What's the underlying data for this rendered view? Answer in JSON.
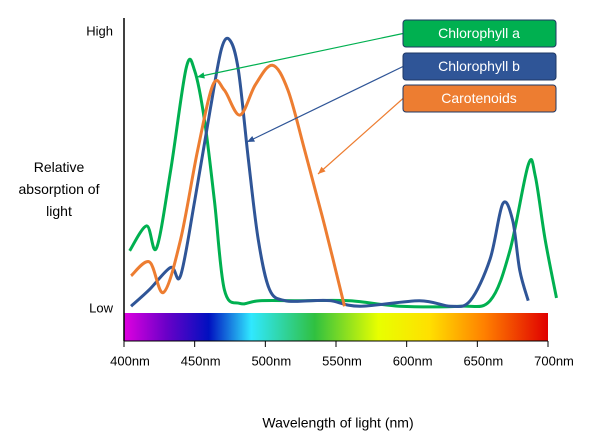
{
  "chart_data": {
    "type": "line",
    "xlabel": "Wavelength of light (nm)",
    "ylabel": "Relative absorption of light",
    "xlim": [
      400,
      700
    ],
    "xticks": [
      {
        "value": 400,
        "label": "400nm"
      },
      {
        "value": 450,
        "label": "450nm"
      },
      {
        "value": 500,
        "label": "500nm"
      },
      {
        "value": 550,
        "label": "550nm"
      },
      {
        "value": 600,
        "label": "600nm"
      },
      {
        "value": 650,
        "label": "650nm"
      },
      {
        "value": 700,
        "label": "700nm"
      }
    ],
    "ylim": [
      0,
      100
    ],
    "yticks": [
      {
        "value": 0,
        "label": "Low"
      },
      {
        "value": 100,
        "label": "High"
      }
    ],
    "series": [
      {
        "name": "Chlorophyll a",
        "color": "#00b050",
        "x": [
          404,
          416,
          423,
          433,
          444,
          450,
          457,
          464,
          471,
          482,
          496,
          525,
          560,
          595,
          638,
          659,
          673,
          686,
          691,
          698,
          706
        ],
        "values": [
          21,
          30,
          22,
          50,
          87,
          86,
          68,
          39,
          7,
          2,
          3,
          3,
          3,
          1,
          1,
          3,
          21,
          52,
          48,
          25,
          4
        ]
      },
      {
        "name": "Chlorophyll b",
        "color": "#2f5597",
        "x": [
          405,
          418,
          433,
          440,
          450,
          461,
          469,
          475,
          481,
          488,
          495,
          503,
          514,
          532,
          546,
          567,
          609,
          631,
          645,
          659,
          668,
          675,
          680,
          686
        ],
        "values": [
          1,
          7,
          15,
          12,
          39,
          72,
          94,
          97,
          86,
          54,
          25,
          7,
          3,
          3,
          3,
          1,
          3,
          1,
          3,
          18,
          38,
          32,
          14,
          3
        ]
      },
      {
        "name": "Carotenoids",
        "color": "#ed7d31",
        "x": [
          405,
          418,
          428,
          440,
          452,
          463,
          471,
          482,
          493,
          505,
          516,
          528,
          542,
          556
        ],
        "values": [
          12,
          17,
          6,
          25,
          57,
          81,
          79,
          70,
          81,
          88,
          79,
          57,
          30,
          1
        ]
      }
    ]
  }
}
